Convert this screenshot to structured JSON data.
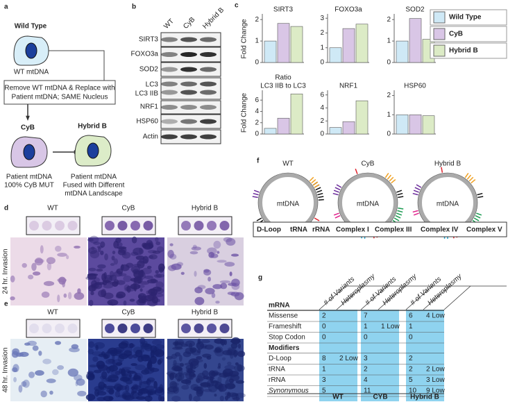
{
  "panel_labels": [
    "a",
    "b",
    "c",
    "d",
    "e",
    "f",
    "g"
  ],
  "a": {
    "wild_type": "Wild Type",
    "wt_mtdna": "WT mtDNA",
    "box": [
      "Remove WT mtDNA & Replace with",
      "Patient mtDNA; SAME Nucleus"
    ],
    "cyb": "CyB",
    "hybrid": "Hybrid B",
    "cyb_caption": [
      "Patient mtDNA",
      "100% CyB MUT"
    ],
    "hybrid_caption": [
      "Patient mtDNA",
      "Fused with Different",
      "mtDNA Landscape"
    ]
  },
  "b": {
    "columns": [
      "WT",
      "CyB",
      "Hybrid B"
    ],
    "rows": [
      "SIRT3",
      "FOXO3a",
      "SOD2",
      "LC3",
      "LC3 IIB",
      "NRF1",
      "HSP60",
      "Actin"
    ]
  },
  "c_legend": [
    {
      "name": "Wild Type",
      "color": "#cfe9f6"
    },
    {
      "name": "CyB",
      "color": "#d9c6e6"
    },
    {
      "name": "Hybrid B",
      "color": "#dcebc6"
    }
  ],
  "chart_data": [
    {
      "type": "bar",
      "title": [
        "SIRT3"
      ],
      "y_label": "Fold Change",
      "values": [
        1,
        1.82,
        1.68
      ],
      "ylim": [
        0,
        2.2
      ],
      "yticks": [
        0,
        1,
        2
      ]
    },
    {
      "type": "bar",
      "title": [
        "FOXO3a"
      ],
      "values": [
        1,
        2.3,
        2.6
      ],
      "ylim": [
        0,
        3.2
      ],
      "yticks": [
        0,
        1,
        2,
        3
      ]
    },
    {
      "type": "bar",
      "title": [
        "SOD2"
      ],
      "values": [
        1,
        2.05,
        1.08
      ],
      "ylim": [
        0,
        2.2
      ],
      "yticks": [
        0,
        1,
        2
      ]
    },
    {
      "type": "bar",
      "title": [
        "Ratio",
        "LC3 IIB to LC3"
      ],
      "y_label": "Fold Change",
      "values": [
        1,
        2.8,
        7.1
      ],
      "ylim": [
        0,
        7.5
      ],
      "yticks": [
        0,
        2,
        4,
        6
      ]
    },
    {
      "type": "bar",
      "title": [
        "NRF1"
      ],
      "values": [
        1,
        1.9,
        5.1
      ],
      "ylim": [
        0,
        6.5
      ],
      "yticks": [
        0,
        2,
        4,
        6
      ]
    },
    {
      "type": "bar",
      "title": [
        "HSP60"
      ],
      "values": [
        1,
        1,
        0.95
      ],
      "ylim": [
        0,
        2.2
      ],
      "yticks": [
        0,
        1,
        2
      ]
    }
  ],
  "d": {
    "columns": [
      "WT",
      "CyB",
      "Hybrid B"
    ],
    "row_label": "24 hr. Invasion"
  },
  "e": {
    "columns": [
      "WT",
      "CyB",
      "Hybrid B"
    ],
    "row_label": "48 hr. Invasion"
  },
  "f": {
    "columns": [
      "WT",
      "CyB",
      "Hybrid B"
    ],
    "center_label": "mtDNA",
    "legend": [
      {
        "name": "D-Loop",
        "color": "#111111"
      },
      {
        "name": "tRNA",
        "color": "#1a9fc9"
      },
      {
        "name": "rRNA",
        "color": "#f0a020"
      },
      {
        "name": "Complex I",
        "color": "#e0202a"
      },
      {
        "name": "Complex III",
        "color": "#1a9a50"
      },
      {
        "name": "Complex IV",
        "color": "#6a2a9a"
      },
      {
        "name": "Complex V",
        "color": "#e0208a"
      }
    ]
  },
  "g": {
    "groups": [
      "WT",
      "CYB",
      "Hybrid B"
    ],
    "column_headers": [
      "# of Variants",
      "Heteroplasmy"
    ],
    "sections": [
      {
        "title": "mRNA",
        "rows": [
          [
            "Missense",
            2,
            null,
            7,
            null,
            6,
            "4 Low"
          ],
          [
            "Frameshift",
            0,
            null,
            1,
            "1 Low",
            1,
            null
          ],
          [
            "Stop Codon",
            0,
            null,
            0,
            null,
            0,
            null
          ]
        ]
      },
      {
        "title": "Modifiers",
        "rows": [
          [
            "D-Loop",
            8,
            "2 Low",
            3,
            null,
            2,
            null
          ],
          [
            "tRNA",
            1,
            null,
            2,
            null,
            2,
            "2 Low"
          ],
          [
            "rRNA",
            3,
            null,
            4,
            null,
            5,
            "3 Low"
          ],
          [
            "Synonymous",
            5,
            null,
            11,
            null,
            10,
            "9 Low"
          ]
        ]
      }
    ]
  }
}
